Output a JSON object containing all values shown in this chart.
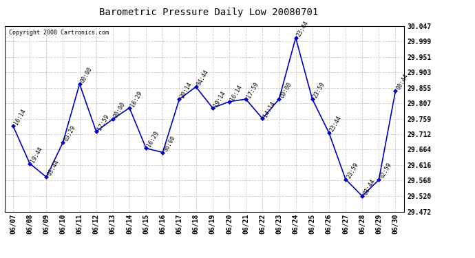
{
  "title": "Barometric Pressure Daily Low 20080701",
  "copyright": "Copyright 2008 Cartronics.com",
  "x_labels": [
    "06/07",
    "06/08",
    "06/09",
    "06/10",
    "06/11",
    "06/12",
    "06/13",
    "06/14",
    "06/15",
    "06/16",
    "06/17",
    "06/18",
    "06/19",
    "06/20",
    "06/21",
    "06/22",
    "06/23",
    "06/24",
    "06/25",
    "06/26",
    "06/27",
    "06/28",
    "06/29",
    "06/30"
  ],
  "y_values": [
    29.737,
    29.621,
    29.579,
    29.686,
    29.867,
    29.72,
    29.758,
    29.793,
    29.668,
    29.655,
    29.82,
    29.858,
    29.793,
    29.812,
    29.82,
    29.76,
    29.82,
    30.01,
    29.82,
    29.716,
    29.572,
    29.52,
    29.57,
    29.845
  ],
  "point_labels": [
    "16:14",
    "19:44",
    "03:44",
    "03:29",
    "00:00",
    "17:59",
    "00:00",
    "16:29",
    "16:29",
    "00:00",
    "20:14",
    "04:44",
    "19:14",
    "16:14",
    "17:59",
    "14:14",
    "00:00",
    "23:44",
    "23:59",
    "23:44",
    "23:59",
    "03:44",
    "02:59",
    "00:44"
  ],
  "line_color": "#0000bb",
  "marker_color": "#0000bb",
  "background_color": "#ffffff",
  "grid_color": "#cccccc",
  "ylim_min": 29.472,
  "ylim_max": 30.047,
  "yticks": [
    29.472,
    29.52,
    29.568,
    29.616,
    29.664,
    29.712,
    29.759,
    29.807,
    29.855,
    29.903,
    29.951,
    29.999,
    30.047
  ]
}
